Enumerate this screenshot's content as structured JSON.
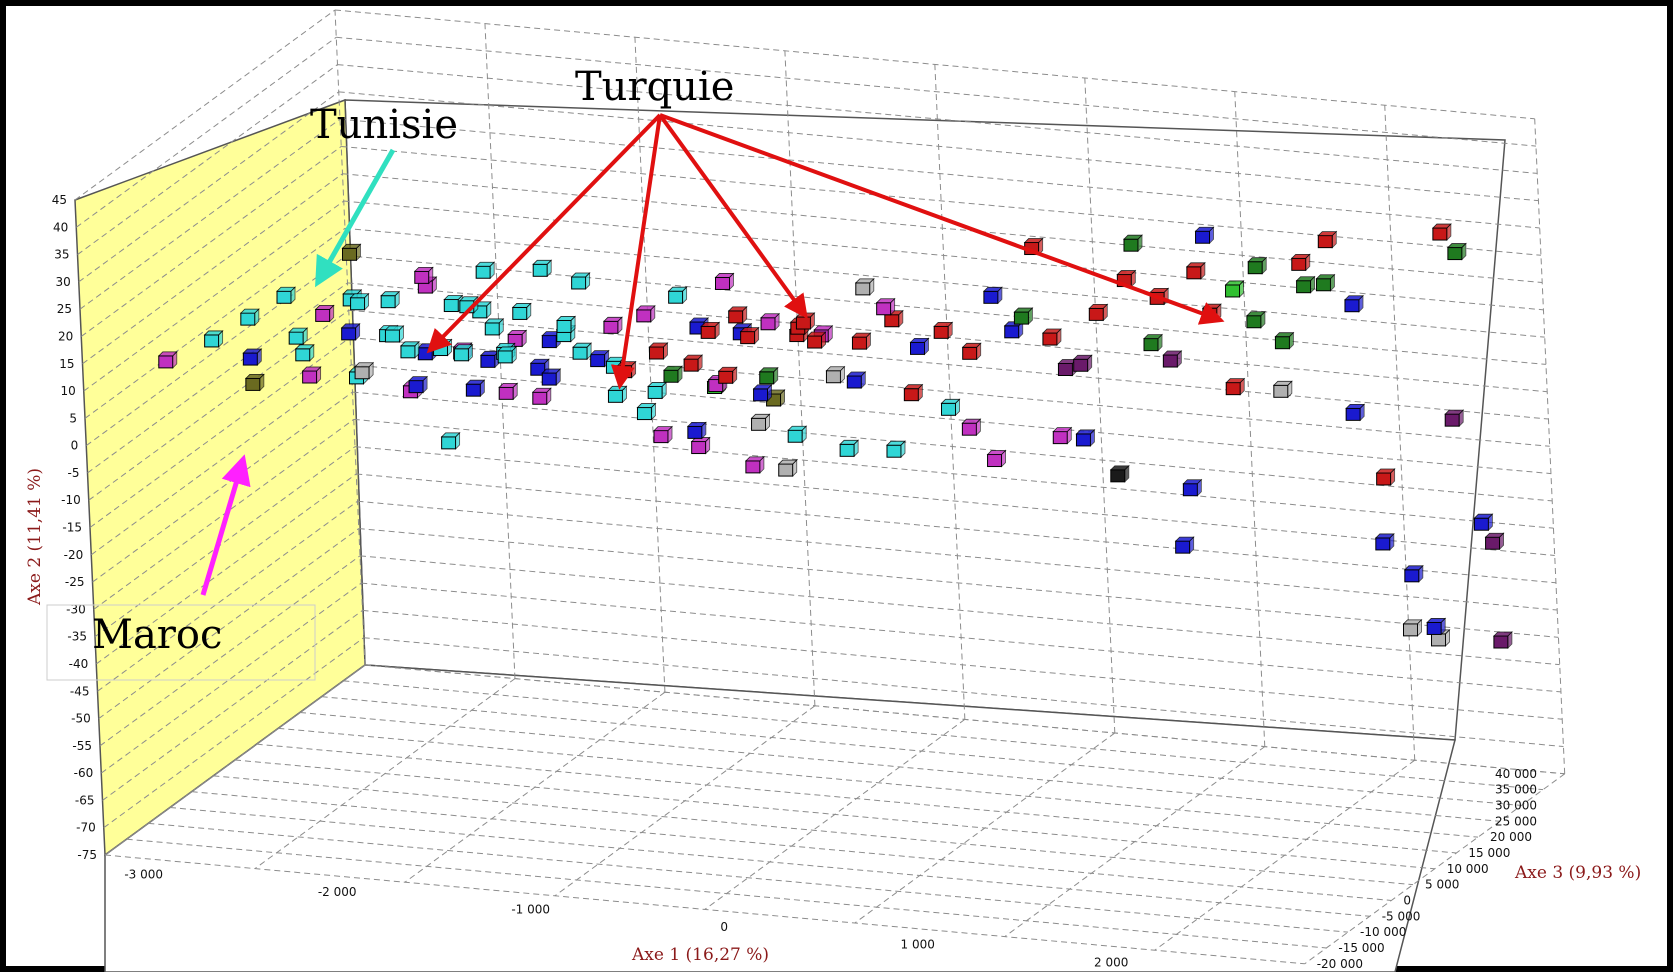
{
  "chart_data": {
    "type": "scatter",
    "title": "",
    "axes": {
      "x": {
        "label": "Axe 1 (16,27 %)",
        "range": [
          -3200,
          3000
        ],
        "ticks": [
          "-3 000",
          "-2 000",
          "-1 000",
          "0",
          "1 000",
          "2 000"
        ]
      },
      "y": {
        "label": "Axe 2 (11,41 %)",
        "range": [
          -75,
          45
        ],
        "ticks": [
          "45",
          "40",
          "35",
          "30",
          "25",
          "20",
          "15",
          "10",
          "5",
          "0",
          "-5",
          "-10",
          "-15",
          "-20",
          "-25",
          "-30",
          "-35",
          "-40",
          "-45",
          "-50",
          "-55",
          "-60",
          "-65",
          "-70",
          "-75"
        ]
      },
      "z": {
        "label": "Axe 3 (9,93 %)",
        "range": [
          -20000,
          40000
        ],
        "ticks": [
          "40 000",
          "35 000",
          "30 000",
          "25 000",
          "20 000",
          "15 000",
          "10 000",
          "5 000",
          "0",
          "-5 000",
          "-10 000",
          "-15 000",
          "-20 000"
        ]
      }
    },
    "annotations": [
      {
        "text": "Turquie",
        "color": "#e01010"
      },
      {
        "text": "Tunisie",
        "color": "#30e0c0"
      },
      {
        "text": "Maroc",
        "color": "#ff20ff"
      }
    ],
    "colors": {
      "cyan": "#2fd6d6",
      "magenta": "#c030c0",
      "blue": "#1a1ad0",
      "red": "#c81818",
      "green": "#1f7a1f",
      "purple": "#6a1a6a",
      "grey": "#b0b0b0",
      "olive": "#6a6a20",
      "lightgreen": "#30c030",
      "black": "#1a1a1a",
      "back_wall": "#ffffff",
      "side_wall": "#ffff99",
      "grid": "#8c8c8c"
    },
    "points": [
      {
        "x": -3000,
        "y": 10,
        "z": -10000,
        "c": "magenta"
      },
      {
        "x": -2850,
        "y": 12,
        "z": -6000,
        "c": "cyan"
      },
      {
        "x": -2750,
        "y": 14,
        "z": -2000,
        "c": "cyan"
      },
      {
        "x": -2700,
        "y": 8,
        "z": -4000,
        "c": "blue"
      },
      {
        "x": -2650,
        "y": 16,
        "z": 2000,
        "c": "cyan"
      },
      {
        "x": -2600,
        "y": 6,
        "z": -8000,
        "c": "olive"
      },
      {
        "x": -2550,
        "y": 10,
        "z": 0,
        "c": "cyan"
      },
      {
        "x": -2500,
        "y": 12,
        "z": 4000,
        "c": "magenta"
      },
      {
        "x": -2450,
        "y": 9,
        "z": -3000,
        "c": "cyan"
      },
      {
        "x": -2400,
        "y": 14,
        "z": 6000,
        "c": "cyan"
      },
      {
        "x": -2350,
        "y": 7,
        "z": -6000,
        "c": "magenta"
      },
      {
        "x": -2300,
        "y": 11,
        "z": 1000,
        "c": "blue"
      },
      {
        "x": -2250,
        "y": 13,
        "z": 8000,
        "c": "cyan"
      },
      {
        "x": -2200,
        "y": 5,
        "z": -2000,
        "c": "cyan"
      },
      {
        "x": -2150,
        "y": 10,
        "z": 3000,
        "c": "cyan"
      },
      {
        "x": -2100,
        "y": 15,
        "z": 10000,
        "c": "magenta"
      },
      {
        "x": -2100,
        "y": 8,
        "z": -5000,
        "c": "grey"
      },
      {
        "x": -2050,
        "y": 12,
        "z": 0,
        "c": "cyan"
      },
      {
        "x": -2000,
        "y": 6,
        "z": 5000,
        "c": "blue"
      },
      {
        "x": -1950,
        "y": 10,
        "z": -1000,
        "c": "cyan"
      },
      {
        "x": -1900,
        "y": 14,
        "z": 7000,
        "c": "cyan"
      },
      {
        "x": -1900,
        "y": 4,
        "z": -3000,
        "c": "magenta"
      },
      {
        "x": -1850,
        "y": 9,
        "z": 2000,
        "c": "cyan"
      },
      {
        "x": -1800,
        "y": 12,
        "z": 9000,
        "c": "cyan"
      },
      {
        "x": -1800,
        "y": 7,
        "z": -6000,
        "c": "blue"
      },
      {
        "x": -1750,
        "y": 16,
        "z": 4000,
        "c": "cyan"
      },
      {
        "x": -1700,
        "y": 10,
        "z": 0,
        "c": "magenta"
      },
      {
        "x": -1700,
        "y": 5,
        "z": 6000,
        "c": "blue"
      },
      {
        "x": -1650,
        "y": 11,
        "z": -2000,
        "c": "cyan"
      },
      {
        "x": -1600,
        "y": 13,
        "z": 3000,
        "c": "cyan"
      },
      {
        "x": -1600,
        "y": 8,
        "z": 8000,
        "c": "magenta"
      },
      {
        "x": -1550,
        "y": 6,
        "z": -4000,
        "c": "blue"
      },
      {
        "x": -1500,
        "y": 10,
        "z": 1000,
        "c": "cyan"
      },
      {
        "x": -1500,
        "y": 15,
        "z": 5000,
        "c": "cyan"
      },
      {
        "x": -1450,
        "y": 4,
        "z": -1000,
        "c": "magenta"
      },
      {
        "x": -1400,
        "y": 9,
        "z": 7000,
        "c": "blue"
      },
      {
        "x": -1400,
        "y": 12,
        "z": -3000,
        "c": "cyan"
      },
      {
        "x": -1350,
        "y": 7,
        "z": 2000,
        "c": "blue"
      },
      {
        "x": -1300,
        "y": 11,
        "z": 6000,
        "c": "cyan"
      },
      {
        "x": -1300,
        "y": 3,
        "z": 0,
        "c": "magenta"
      },
      {
        "x": -1250,
        "y": 14,
        "z": 4000,
        "c": "cyan"
      },
      {
        "x": -1200,
        "y": 8,
        "z": -2000,
        "c": "blue"
      },
      {
        "x": -1200,
        "y": 5,
        "z": 9000,
        "c": "blue"
      },
      {
        "x": -1150,
        "y": 10,
        "z": 3000,
        "c": "cyan"
      },
      {
        "x": -2300,
        "y": 25,
        "z": 2000,
        "c": "olive"
      },
      {
        "x": -2000,
        "y": 20,
        "z": 5000,
        "c": "magenta"
      },
      {
        "x": -1750,
        "y": 20,
        "z": 8000,
        "c": "cyan"
      },
      {
        "x": -1500,
        "y": 20,
        "z": 10000,
        "c": "cyan"
      },
      {
        "x": -1900,
        "y": -10,
        "z": 5000,
        "c": "cyan"
      },
      {
        "x": -2200,
        "y": 18,
        "z": -1000,
        "c": "cyan"
      },
      {
        "x": -1350,
        "y": 17,
        "z": 12000,
        "c": "cyan"
      },
      {
        "x": -1100,
        "y": 12,
        "z": 8000,
        "c": "magenta"
      },
      {
        "x": -1050,
        "y": 6,
        "z": 6000,
        "c": "cyan"
      },
      {
        "x": -1000,
        "y": 2,
        "z": 4000,
        "c": "cyan"
      },
      {
        "x": -950,
        "y": 14,
        "z": 9000,
        "c": "magenta"
      },
      {
        "x": -900,
        "y": 8,
        "z": 2000,
        "c": "red"
      },
      {
        "x": -900,
        "y": -2,
        "z": 6000,
        "c": "cyan"
      },
      {
        "x": -850,
        "y": 16,
        "z": 12000,
        "c": "cyan"
      },
      {
        "x": -800,
        "y": 10,
        "z": 5000,
        "c": "red"
      },
      {
        "x": -800,
        "y": 4,
        "z": 8000,
        "c": "green"
      },
      {
        "x": -750,
        "y": -4,
        "z": 3000,
        "c": "magenta"
      },
      {
        "x": -700,
        "y": 12,
        "z": 10000,
        "c": "blue"
      },
      {
        "x": -700,
        "y": 6,
        "z": 0,
        "c": "cyan"
      },
      {
        "x": -650,
        "y": 18,
        "z": 14000,
        "c": "magenta"
      },
      {
        "x": -650,
        "y": -8,
        "z": 7000,
        "c": "magenta"
      },
      {
        "x": -600,
        "y": 9,
        "z": 4000,
        "c": "red"
      },
      {
        "x": -600,
        "y": 2,
        "z": 9000,
        "c": "lightgreen"
      },
      {
        "x": -550,
        "y": 14,
        "z": 6000,
        "c": "red"
      },
      {
        "x": -550,
        "y": -2,
        "z": 2000,
        "c": "blue"
      },
      {
        "x": -500,
        "y": 11,
        "z": 11000,
        "c": "blue"
      },
      {
        "x": -500,
        "y": 5,
        "z": 5000,
        "c": "magenta"
      },
      {
        "x": -450,
        "y": 16,
        "z": 8000,
        "c": "red"
      },
      {
        "x": -450,
        "y": -6,
        "z": 12000,
        "c": "grey"
      },
      {
        "x": -400,
        "y": 8,
        "z": 3000,
        "c": "red"
      },
      {
        "x": -400,
        "y": 12,
        "z": 13000,
        "c": "magenta"
      },
      {
        "x": -350,
        "y": 4,
        "z": 10000,
        "c": "green"
      },
      {
        "x": -350,
        "y": -10,
        "z": 6000,
        "c": "magenta"
      },
      {
        "x": -300,
        "y": 15,
        "z": 4000,
        "c": "red"
      },
      {
        "x": -300,
        "y": 9,
        "z": 15000,
        "c": "red"
      },
      {
        "x": -250,
        "y": 2,
        "z": 7000,
        "c": "olive"
      },
      {
        "x": -250,
        "y": -12,
        "z": 9000,
        "c": "grey"
      },
      {
        "x": -200,
        "y": 13,
        "z": 11000,
        "c": "red"
      },
      {
        "x": -200,
        "y": 6,
        "z": 2000,
        "c": "blue"
      },
      {
        "x": -150,
        "y": 10,
        "z": 14000,
        "c": "magenta"
      },
      {
        "x": -100,
        "y": -3,
        "z": 5000,
        "c": "cyan"
      },
      {
        "x": -100,
        "y": 16,
        "z": 8000,
        "c": "red"
      },
      {
        "x": -50,
        "y": 4,
        "z": 12000,
        "c": "grey"
      },
      {
        "x": 0,
        "y": 14,
        "z": 6000,
        "c": "red"
      },
      {
        "x": 0,
        "y": 8,
        "z": 16000,
        "c": "red"
      },
      {
        "x": 50,
        "y": -8,
        "z": 10000,
        "c": "cyan"
      },
      {
        "x": 100,
        "y": 20,
        "z": 13000,
        "c": "grey"
      },
      {
        "x": 150,
        "y": 6,
        "z": 8000,
        "c": "blue"
      },
      {
        "x": 150,
        "y": 12,
        "z": 17000,
        "c": "red"
      },
      {
        "x": 200,
        "y": -10,
        "z": 14000,
        "c": "cyan"
      },
      {
        "x": 250,
        "y": 18,
        "z": 11000,
        "c": "magenta"
      },
      {
        "x": 300,
        "y": 8,
        "z": 16000,
        "c": "blue"
      },
      {
        "x": 350,
        "y": 2,
        "z": 12000,
        "c": "red"
      },
      {
        "x": 400,
        "y": -4,
        "z": 18000,
        "c": "cyan"
      },
      {
        "x": 450,
        "y": 12,
        "z": 15000,
        "c": "red"
      },
      {
        "x": 500,
        "y": 6,
        "z": 19000,
        "c": "red"
      },
      {
        "x": 550,
        "y": -6,
        "z": 16000,
        "c": "magenta"
      },
      {
        "x": 600,
        "y": 16,
        "z": 20000,
        "c": "blue"
      },
      {
        "x": 650,
        "y": -12,
        "z": 17000,
        "c": "magenta"
      },
      {
        "x": 700,
        "y": 10,
        "z": 20000,
        "c": "blue"
      },
      {
        "x": 800,
        "y": 25,
        "z": 21000,
        "c": "red"
      },
      {
        "x": 800,
        "y": 14,
        "z": 18000,
        "c": "green"
      },
      {
        "x": 850,
        "y": 8,
        "z": 22000,
        "c": "red"
      },
      {
        "x": 900,
        "y": 2,
        "z": 23000,
        "c": "purple"
      },
      {
        "x": 950,
        "y": -8,
        "z": 19000,
        "c": "magenta"
      },
      {
        "x": 1000,
        "y": -10,
        "z": 22000,
        "c": "blue"
      },
      {
        "x": 1050,
        "y": 12,
        "z": 24000,
        "c": "red"
      },
      {
        "x": 1050,
        "y": 5,
        "z": 20000,
        "c": "purple"
      },
      {
        "x": 1100,
        "y": -18,
        "z": 25000,
        "c": "black"
      },
      {
        "x": 1200,
        "y": 24,
        "z": 26000,
        "c": "green"
      },
      {
        "x": 1250,
        "y": 20,
        "z": 22000,
        "c": "red"
      },
      {
        "x": 1300,
        "y": 14,
        "z": 27000,
        "c": "red"
      },
      {
        "x": 1350,
        "y": 8,
        "z": 23000,
        "c": "green"
      },
      {
        "x": 1350,
        "y": -32,
        "z": 28000,
        "c": "blue"
      },
      {
        "x": 1400,
        "y": 4,
        "z": 25000,
        "c": "purple"
      },
      {
        "x": 1450,
        "y": 18,
        "z": 29000,
        "c": "red"
      },
      {
        "x": 1450,
        "y": -20,
        "z": 26000,
        "c": "blue"
      },
      {
        "x": 1500,
        "y": 10,
        "z": 30000,
        "c": "red"
      },
      {
        "x": 1550,
        "y": 26,
        "z": 27000,
        "c": "blue"
      },
      {
        "x": 1600,
        "y": 14,
        "z": 31000,
        "c": "lightgreen"
      },
      {
        "x": 1650,
        "y": -2,
        "z": 28000,
        "c": "red"
      },
      {
        "x": 1700,
        "y": 18,
        "z": 32000,
        "c": "green"
      },
      {
        "x": 1750,
        "y": 10,
        "z": 29000,
        "c": "green"
      },
      {
        "x": 1800,
        "y": 4,
        "z": 33000,
        "c": "green"
      },
      {
        "x": 1850,
        "y": -3,
        "z": 30000,
        "c": "grey"
      },
      {
        "x": 1900,
        "y": 14,
        "z": 34000,
        "c": "green"
      },
      {
        "x": 1950,
        "y": 20,
        "z": 31000,
        "c": "red"
      },
      {
        "x": 2000,
        "y": 22,
        "z": 35000,
        "c": "red"
      },
      {
        "x": 2050,
        "y": 16,
        "z": 32000,
        "c": "green"
      },
      {
        "x": 2100,
        "y": 10,
        "z": 36000,
        "c": "blue"
      },
      {
        "x": 2150,
        "y": -8,
        "z": 33000,
        "c": "blue"
      },
      {
        "x": 2200,
        "y": -22,
        "z": 37000,
        "c": "red"
      },
      {
        "x": 2250,
        "y": -32,
        "z": 34000,
        "c": "blue"
      },
      {
        "x": 2300,
        "y": -40,
        "z": 38000,
        "c": "blue"
      },
      {
        "x": 2350,
        "y": -48,
        "z": 35000,
        "c": "grey"
      },
      {
        "x": 2400,
        "y": -52,
        "z": 39000,
        "c": "grey"
      },
      {
        "x": 2450,
        "y": -48,
        "z": 36000,
        "c": "blue"
      },
      {
        "x": 2500,
        "y": -12,
        "z": 40000,
        "c": "purple"
      },
      {
        "x": 2550,
        "y": 24,
        "z": 37000,
        "c": "red"
      },
      {
        "x": 2600,
        "y": 20,
        "z": 38000,
        "c": "green"
      },
      {
        "x": 2650,
        "y": -30,
        "z": 39000,
        "c": "blue"
      },
      {
        "x": 2700,
        "y": -52,
        "z": 40000,
        "c": "purple"
      },
      {
        "x": 2750,
        "y": -32,
        "z": 37000,
        "c": "purple"
      }
    ]
  }
}
